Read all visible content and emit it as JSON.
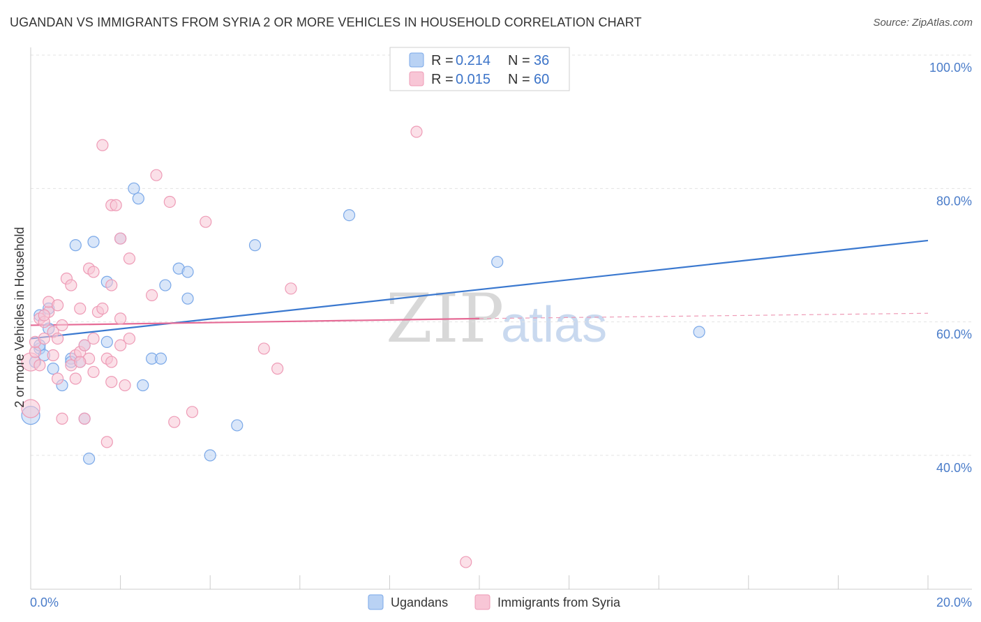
{
  "title": "UGANDAN VS IMMIGRANTS FROM SYRIA 2 OR MORE VEHICLES IN HOUSEHOLD CORRELATION CHART",
  "source": "Source: ZipAtlas.com",
  "watermark": {
    "zip": "ZIP",
    "atlas": "atlas"
  },
  "legend": {
    "r_label": "R =",
    "n_label": "N =",
    "series": [
      {
        "r": "0.214",
        "n": "36"
      },
      {
        "r": "0.015",
        "n": "60"
      }
    ]
  },
  "chart_data": {
    "type": "scatter",
    "title": "UGANDAN VS IMMIGRANTS FROM SYRIA 2 OR MORE VEHICLES IN HOUSEHOLD CORRELATION CHART",
    "xlabel": "",
    "ylabel": "2 or more Vehicles in Household",
    "xlim": [
      0,
      20
    ],
    "ylim": [
      20,
      104
    ],
    "x_tick_labels": [
      "0.0%",
      "20.0%"
    ],
    "y_ticks": [
      40,
      60,
      80,
      100
    ],
    "y_tick_labels": [
      "40.0%",
      "60.0%",
      "80.0%",
      "100.0%"
    ],
    "grid": true,
    "legend_position": "top-center",
    "series": [
      {
        "name": "Ugandans",
        "color": "#7aa8e8",
        "fill": "#b9d2f4",
        "trend": {
          "x0": 0,
          "y0": 57.5,
          "x1": 20,
          "y1": 72.2
        },
        "points": [
          [
            0.0,
            46.0
          ],
          [
            0.1,
            54.0
          ],
          [
            0.2,
            56.0
          ],
          [
            0.2,
            61.0
          ],
          [
            0.3,
            55.0
          ],
          [
            0.4,
            62.0
          ],
          [
            0.5,
            53.0
          ],
          [
            0.7,
            50.5
          ],
          [
            0.9,
            54.5
          ],
          [
            1.1,
            54.0
          ],
          [
            1.2,
            45.5
          ],
          [
            1.3,
            39.5
          ],
          [
            1.0,
            71.5
          ],
          [
            1.4,
            72.0
          ],
          [
            1.7,
            57.0
          ],
          [
            1.7,
            66.0
          ],
          [
            2.0,
            72.5
          ],
          [
            2.3,
            80.0
          ],
          [
            2.4,
            78.5
          ],
          [
            2.5,
            50.5
          ],
          [
            2.7,
            54.5
          ],
          [
            2.9,
            54.5
          ],
          [
            3.0,
            65.5
          ],
          [
            3.3,
            68.0
          ],
          [
            3.5,
            67.5
          ],
          [
            3.5,
            63.5
          ],
          [
            4.0,
            40.0
          ],
          [
            4.6,
            44.5
          ],
          [
            5.0,
            71.5
          ],
          [
            7.1,
            76.0
          ],
          [
            10.4,
            69.0
          ],
          [
            14.9,
            58.5
          ],
          [
            1.2,
            56.5
          ],
          [
            0.2,
            56.5
          ],
          [
            0.4,
            59.0
          ],
          [
            0.9,
            54.0
          ]
        ]
      },
      {
        "name": "Immigrants from Syria",
        "color": "#ee9bb6",
        "fill": "#f8c6d6",
        "trend": {
          "x0": 0,
          "y0": 59.5,
          "x1": 10,
          "y1": 60.5,
          "dash_x1": 20,
          "dash_y1": 61.3
        },
        "points": [
          [
            0.0,
            47.0
          ],
          [
            0.0,
            54.0
          ],
          [
            0.1,
            55.5
          ],
          [
            0.1,
            57.0
          ],
          [
            0.2,
            60.5
          ],
          [
            0.3,
            57.5
          ],
          [
            0.3,
            60.0
          ],
          [
            0.4,
            61.5
          ],
          [
            0.4,
            63.0
          ],
          [
            0.5,
            58.5
          ],
          [
            0.6,
            51.5
          ],
          [
            0.6,
            62.5
          ],
          [
            0.7,
            59.5
          ],
          [
            0.7,
            45.5
          ],
          [
            0.8,
            66.5
          ],
          [
            0.9,
            53.5
          ],
          [
            0.9,
            65.5
          ],
          [
            1.0,
            55.0
          ],
          [
            1.0,
            51.5
          ],
          [
            1.1,
            55.5
          ],
          [
            1.1,
            62.0
          ],
          [
            1.2,
            56.5
          ],
          [
            1.2,
            45.5
          ],
          [
            1.3,
            54.5
          ],
          [
            1.3,
            68.0
          ],
          [
            1.4,
            67.5
          ],
          [
            1.4,
            52.5
          ],
          [
            1.4,
            57.5
          ],
          [
            1.5,
            61.5
          ],
          [
            1.6,
            62.0
          ],
          [
            1.6,
            86.5
          ],
          [
            1.7,
            54.5
          ],
          [
            1.7,
            42.0
          ],
          [
            1.8,
            54.0
          ],
          [
            1.8,
            77.5
          ],
          [
            1.8,
            65.5
          ],
          [
            1.8,
            51.0
          ],
          [
            1.9,
            77.5
          ],
          [
            2.0,
            72.5
          ],
          [
            2.0,
            60.5
          ],
          [
            2.0,
            56.5
          ],
          [
            2.1,
            50.5
          ],
          [
            2.2,
            57.5
          ],
          [
            2.2,
            69.5
          ],
          [
            2.7,
            64.0
          ],
          [
            2.8,
            82.0
          ],
          [
            3.1,
            78.0
          ],
          [
            3.2,
            45.0
          ],
          [
            3.6,
            46.5
          ],
          [
            3.9,
            75.0
          ],
          [
            5.2,
            56.0
          ],
          [
            5.5,
            53.0
          ],
          [
            5.8,
            65.0
          ],
          [
            8.6,
            88.5
          ],
          [
            9.7,
            24.0
          ],
          [
            0.2,
            53.5
          ],
          [
            0.5,
            55.0
          ],
          [
            0.3,
            61.0
          ],
          [
            1.1,
            54.0
          ],
          [
            0.6,
            57.5
          ]
        ]
      }
    ]
  }
}
